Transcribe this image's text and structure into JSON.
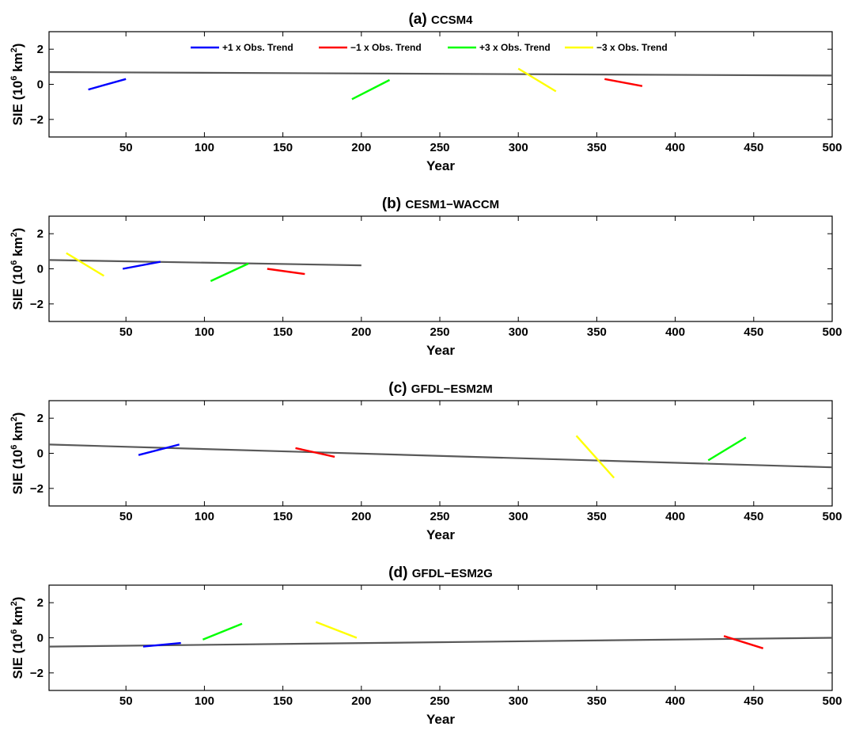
{
  "chart_data": [
    {
      "type": "line",
      "label": "(a)",
      "title": "CCSM4",
      "xlabel": "Year",
      "ylabel": "SIE (10^6 km^2)",
      "xlim": [
        1,
        500
      ],
      "ylim": [
        -3,
        3
      ],
      "xticks": [
        50,
        100,
        150,
        200,
        250,
        300,
        350,
        400,
        450,
        500
      ],
      "yticks": [
        -2,
        0,
        2
      ],
      "grid": false,
      "legend": {
        "placement": "top-center",
        "entries": [
          {
            "name": "+1 x Obs. Trend",
            "color": "#0000ff"
          },
          {
            "name": "−1 x Obs. Trend",
            "color": "#ff0000"
          },
          {
            "name": "+3 x Obs. Trend",
            "color": "#00ff00"
          },
          {
            "name": "−3 x Obs. Trend",
            "color": "#ffff00"
          }
        ]
      },
      "series": [
        {
          "color": "#595959",
          "x": [
            1,
            500
          ],
          "values": [
            0.7,
            0.5
          ]
        }
      ],
      "segments": [
        {
          "name": "+1 x Obs. Trend",
          "color": "#0000ff",
          "x": [
            26,
            50
          ],
          "values": [
            -0.3,
            0.3
          ]
        },
        {
          "name": "+3 x Obs. Trend",
          "color": "#00ff00",
          "x": [
            194,
            218
          ],
          "values": [
            -0.85,
            0.25
          ]
        },
        {
          "name": "−3 x Obs. Trend",
          "color": "#ffff00",
          "x": [
            300,
            324
          ],
          "values": [
            0.9,
            -0.4
          ]
        },
        {
          "name": "−1 x Obs. Trend",
          "color": "#ff0000",
          "x": [
            355,
            379
          ],
          "values": [
            0.3,
            -0.1
          ]
        }
      ]
    },
    {
      "type": "line",
      "label": "(b)",
      "title": "CESM1−WACCM",
      "xlabel": "Year",
      "ylabel": "SIE (10^6 km^2)",
      "xlim": [
        1,
        500
      ],
      "ylim": [
        -3,
        3
      ],
      "xticks": [
        50,
        100,
        150,
        200,
        250,
        300,
        350,
        400,
        450,
        500
      ],
      "yticks": [
        -2,
        0,
        2
      ],
      "grid": false,
      "series": [
        {
          "color": "#595959",
          "x": [
            1,
            200
          ],
          "values": [
            0.5,
            0.2
          ]
        }
      ],
      "segments": [
        {
          "name": "−3 x Obs. Trend",
          "color": "#ffff00",
          "x": [
            12,
            36
          ],
          "values": [
            0.9,
            -0.4
          ]
        },
        {
          "name": "+1 x Obs. Trend",
          "color": "#0000ff",
          "x": [
            48,
            72
          ],
          "values": [
            0.0,
            0.4
          ]
        },
        {
          "name": "+3 x Obs. Trend",
          "color": "#00ff00",
          "x": [
            104,
            128
          ],
          "values": [
            -0.7,
            0.3
          ]
        },
        {
          "name": "−1 x Obs. Trend",
          "color": "#ff0000",
          "x": [
            140,
            164
          ],
          "values": [
            0.0,
            -0.3
          ]
        }
      ]
    },
    {
      "type": "line",
      "label": "(c)",
      "title": "GFDL−ESM2M",
      "xlabel": "Year",
      "ylabel": "SIE (10^6 km^2)",
      "xlim": [
        1,
        500
      ],
      "ylim": [
        -3,
        3
      ],
      "xticks": [
        50,
        100,
        150,
        200,
        250,
        300,
        350,
        400,
        450,
        500
      ],
      "yticks": [
        -2,
        0,
        2
      ],
      "grid": false,
      "series": [
        {
          "color": "#595959",
          "x": [
            1,
            500
          ],
          "values": [
            0.5,
            -0.8
          ]
        }
      ],
      "segments": [
        {
          "name": "+1 x Obs. Trend",
          "color": "#0000ff",
          "x": [
            58,
            84
          ],
          "values": [
            -0.1,
            0.5
          ]
        },
        {
          "name": "−1 x Obs. Trend",
          "color": "#ff0000",
          "x": [
            158,
            183
          ],
          "values": [
            0.3,
            -0.2
          ]
        },
        {
          "name": "−3 x Obs. Trend",
          "color": "#ffff00",
          "x": [
            337,
            361
          ],
          "values": [
            1.0,
            -1.4
          ]
        },
        {
          "name": "+3 x Obs. Trend",
          "color": "#00ff00",
          "x": [
            421,
            445
          ],
          "values": [
            -0.4,
            0.9
          ]
        }
      ]
    },
    {
      "type": "line",
      "label": "(d)",
      "title": "GFDL−ESM2G",
      "xlabel": "Year",
      "ylabel": "SIE (10^6 km^2)",
      "xlim": [
        1,
        500
      ],
      "ylim": [
        -3,
        3
      ],
      "xticks": [
        50,
        100,
        150,
        200,
        250,
        300,
        350,
        400,
        450,
        500
      ],
      "yticks": [
        -2,
        0,
        2
      ],
      "grid": false,
      "series": [
        {
          "color": "#595959",
          "x": [
            1,
            500
          ],
          "values": [
            -0.5,
            0.0
          ]
        }
      ],
      "segments": [
        {
          "name": "+1 x Obs. Trend",
          "color": "#0000ff",
          "x": [
            61,
            85
          ],
          "values": [
            -0.5,
            -0.3
          ]
        },
        {
          "name": "+3 x Obs. Trend",
          "color": "#00ff00",
          "x": [
            99,
            124
          ],
          "values": [
            -0.1,
            0.8
          ]
        },
        {
          "name": "−3 x Obs. Trend",
          "color": "#ffff00",
          "x": [
            171,
            197
          ],
          "values": [
            0.9,
            0.0
          ]
        },
        {
          "name": "−1 x Obs. Trend",
          "color": "#ff0000",
          "x": [
            431,
            456
          ],
          "values": [
            0.1,
            -0.6
          ]
        }
      ]
    }
  ]
}
